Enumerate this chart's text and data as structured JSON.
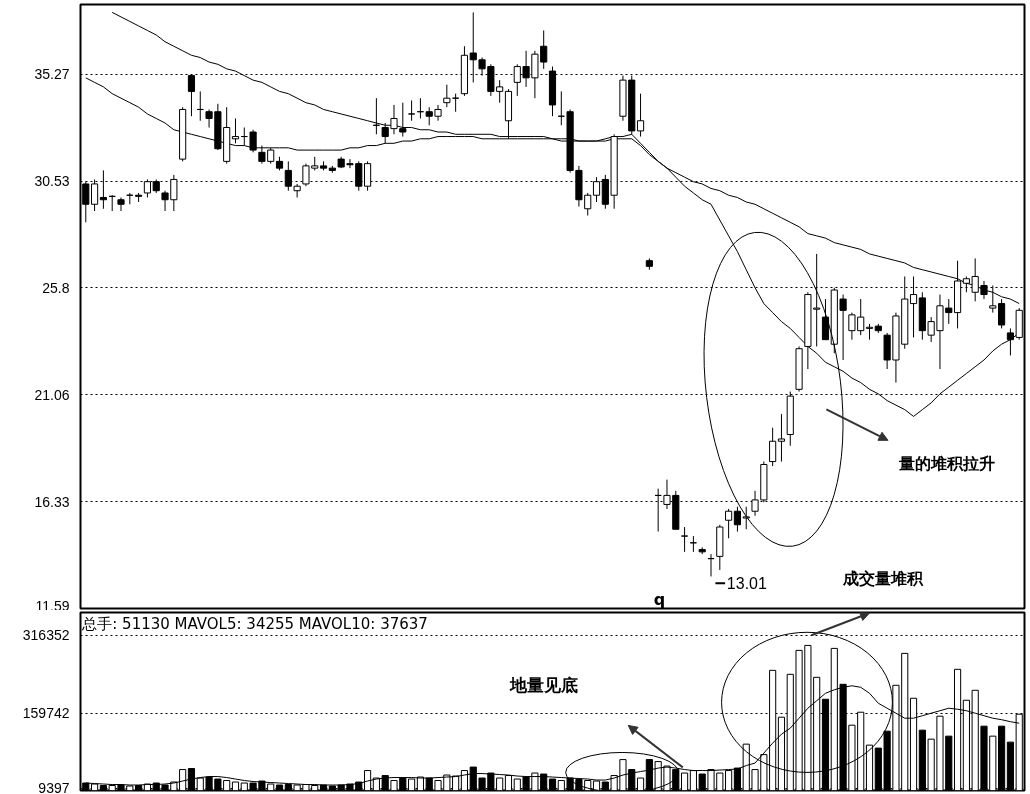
{
  "chart_data": [
    {
      "type": "candlestick",
      "categories": [
        null,
        null,
        null,
        null,
        null,
        null,
        null,
        null,
        null,
        null,
        null,
        null,
        null,
        null,
        null,
        null,
        null,
        null,
        null,
        null,
        null,
        null,
        null,
        null,
        null,
        null,
        null,
        null,
        null,
        null,
        null,
        null,
        null,
        null,
        null,
        null,
        null,
        null,
        null,
        null,
        null,
        null,
        null,
        null,
        null,
        null,
        null,
        null,
        null,
        null,
        null,
        null,
        null,
        null,
        null,
        null,
        null,
        null,
        null,
        null,
        null,
        null,
        null,
        null,
        null,
        null,
        null,
        null,
        null,
        null,
        null,
        null,
        null,
        null,
        null,
        null,
        null,
        null,
        null,
        null,
        null,
        null,
        null,
        null,
        null,
        null,
        null,
        null,
        null,
        null,
        null,
        null,
        null,
        null,
        null,
        null,
        null,
        null,
        null,
        null,
        null,
        null,
        null,
        null,
        null,
        null,
        null
      ],
      "ohlc": [
        [
          30.4,
          30.5,
          28.7,
          29.5
        ],
        [
          29.5,
          30.6,
          29.2,
          30.4
        ],
        [
          29.8,
          31.0,
          29.3,
          29.7
        ],
        [
          29.85,
          29.9,
          29.2,
          29.85
        ],
        [
          29.7,
          29.8,
          29.2,
          29.5
        ],
        [
          29.9,
          30.0,
          29.5,
          29.9
        ],
        [
          29.9,
          30.0,
          29.6,
          29.85
        ],
        [
          30.0,
          30.6,
          29.8,
          30.5
        ],
        [
          30.5,
          30.6,
          30.0,
          30.1
        ],
        [
          30.0,
          30.1,
          29.2,
          29.7
        ],
        [
          29.7,
          30.8,
          29.2,
          30.6
        ],
        [
          31.5,
          33.8,
          31.4,
          33.7
        ],
        [
          35.2,
          35.2,
          33.4,
          34.5
        ],
        [
          33.7,
          34.5,
          33.2,
          33.7
        ],
        [
          33.6,
          33.7,
          32.9,
          33.3
        ],
        [
          33.6,
          33.95,
          31.9,
          31.96
        ],
        [
          31.4,
          33.8,
          31.3,
          32.9
        ],
        [
          32.4,
          33.3,
          32.2,
          32.5
        ],
        [
          32.5,
          32.9,
          32.1,
          32.5
        ],
        [
          32.7,
          32.8,
          31.8,
          31.9
        ],
        [
          31.8,
          32.1,
          31.3,
          31.4
        ],
        [
          31.4,
          32.0,
          31.3,
          31.9
        ],
        [
          31.4,
          31.6,
          31.0,
          31.1
        ],
        [
          31.0,
          31.4,
          30.1,
          30.3
        ],
        [
          30.1,
          30.4,
          29.8,
          30.3
        ],
        [
          30.4,
          31.3,
          30.3,
          31.2
        ],
        [
          31.1,
          31.6,
          31.0,
          31.2
        ],
        [
          31.2,
          31.4,
          31.0,
          31.1
        ],
        [
          31.1,
          31.2,
          30.9,
          31.0
        ],
        [
          31.5,
          31.6,
          31.1,
          31.15
        ],
        [
          31.3,
          31.5,
          31.1,
          31.25
        ],
        [
          31.3,
          31.4,
          30.1,
          30.3
        ],
        [
          30.3,
          31.4,
          30.1,
          31.3
        ],
        [
          33.0,
          34.2,
          32.6,
          33.0
        ],
        [
          32.9,
          33.1,
          32.2,
          32.5
        ],
        [
          32.85,
          33.9,
          32.6,
          33.3
        ],
        [
          32.85,
          34.0,
          32.5,
          32.7
        ],
        [
          33.5,
          34.1,
          33.2,
          33.5
        ],
        [
          33.6,
          34.2,
          33.3,
          33.6
        ],
        [
          33.6,
          33.8,
          33.0,
          33.4
        ],
        [
          33.4,
          33.9,
          33.2,
          33.7
        ],
        [
          34.0,
          34.8,
          33.8,
          34.2
        ],
        [
          34.2,
          34.4,
          33.6,
          34.2
        ],
        [
          34.4,
          36.5,
          34.3,
          36.1
        ],
        [
          36.2,
          38.0,
          34.9,
          35.9
        ],
        [
          35.9,
          36.0,
          35.2,
          35.5
        ],
        [
          35.6,
          35.7,
          34.3,
          34.5
        ],
        [
          34.5,
          35.0,
          34.0,
          34.7
        ],
        [
          33.2,
          34.6,
          32.4,
          34.5
        ],
        [
          34.9,
          35.7,
          34.3,
          35.6
        ],
        [
          35.6,
          36.3,
          34.7,
          35.1
        ],
        [
          35.1,
          36.3,
          34.2,
          36.15
        ],
        [
          36.5,
          37.2,
          35.5,
          35.8
        ],
        [
          35.4,
          35.6,
          33.4,
          33.9
        ],
        [
          33.4,
          34.5,
          33.0,
          33.4
        ],
        [
          33.6,
          33.7,
          30.9,
          31.0
        ],
        [
          31.0,
          31.2,
          29.4,
          29.7
        ],
        [
          29.3,
          30.0,
          29.0,
          29.9
        ],
        [
          29.9,
          30.7,
          29.6,
          30.5
        ],
        [
          30.6,
          30.8,
          29.3,
          29.5
        ],
        [
          29.9,
          32.6,
          29.3,
          32.5
        ],
        [
          33.4,
          35.2,
          33.2,
          35.0
        ],
        [
          35.0,
          35.2,
          32.6,
          32.75
        ],
        [
          32.75,
          34.4,
          32.5,
          33.2
        ],
        [
          27.0,
          27.1,
          26.6,
          26.75
        ],
        [
          16.6,
          16.9,
          15.0,
          16.6
        ],
        [
          16.2,
          17.3,
          16.0,
          16.6
        ],
        [
          16.6,
          16.8,
          15.1,
          15.1
        ],
        [
          14.8,
          15.2,
          14.1,
          14.8
        ],
        [
          14.5,
          14.8,
          14.1,
          14.5
        ],
        [
          14.2,
          14.3,
          14.0,
          14.1
        ],
        [
          13.8,
          14.0,
          13.01,
          13.8
        ],
        [
          13.9,
          15.3,
          13.3,
          15.2
        ],
        [
          15.5,
          16.0,
          14.7,
          15.9
        ],
        [
          15.9,
          16.1,
          15.0,
          15.3
        ],
        [
          15.6,
          16.1,
          15.1,
          15.65
        ],
        [
          15.9,
          16.8,
          15.7,
          16.4
        ],
        [
          16.4,
          18.1,
          16.3,
          17.97
        ],
        [
          18.1,
          19.6,
          17.9,
          19.0
        ],
        [
          19.0,
          20.2,
          18.1,
          19.1
        ],
        [
          19.3,
          21.2,
          18.8,
          21.0
        ],
        [
          21.3,
          23.2,
          21.2,
          23.1
        ],
        [
          23.2,
          25.6,
          22.2,
          25.5
        ],
        [
          24.85,
          27.3,
          23.2,
          24.9
        ],
        [
          24.5,
          25.3,
          23.5,
          23.5
        ],
        [
          23.3,
          25.8,
          22.9,
          25.7
        ],
        [
          25.3,
          25.5,
          22.6,
          24.8
        ],
        [
          23.9,
          24.7,
          23.5,
          24.6
        ],
        [
          23.9,
          25.3,
          23.7,
          24.5
        ],
        [
          24.0,
          24.2,
          23.5,
          24.05
        ],
        [
          24.1,
          24.2,
          23.8,
          23.9
        ],
        [
          23.7,
          23.8,
          22.2,
          22.6
        ],
        [
          22.6,
          24.7,
          21.6,
          24.55
        ],
        [
          23.3,
          26.3,
          23.1,
          25.3
        ],
        [
          25.1,
          26.3,
          23.6,
          25.5
        ],
        [
          25.35,
          25.6,
          23.5,
          23.9
        ],
        [
          23.7,
          24.5,
          23.4,
          24.3
        ],
        [
          23.9,
          25.5,
          22.2,
          25.0
        ],
        [
          24.9,
          25.3,
          24.2,
          24.7
        ],
        [
          24.7,
          27.0,
          24.0,
          26.1
        ],
        [
          26.0,
          26.3,
          25.6,
          26.2
        ],
        [
          25.6,
          27.1,
          25.2,
          26.3
        ],
        [
          25.9,
          26.1,
          25.3,
          25.5
        ],
        [
          24.9,
          25.9,
          24.7,
          25.0
        ],
        [
          25.1,
          25.3,
          24.0,
          24.15
        ],
        [
          23.8,
          24.0,
          22.8,
          23.5
        ],
        [
          23.6,
          24.9,
          23.5,
          24.8
        ]
      ],
      "series": [
        {
          "type": "line",
          "color": "#000000",
          "values": [
            null,
            null,
            null,
            38.0,
            37.8,
            37.6,
            37.4,
            37.2,
            37.0,
            36.7,
            36.5,
            36.3,
            36.1,
            36.0,
            35.8,
            35.7,
            35.5,
            35.4,
            35.2,
            35.0,
            34.9,
            34.7,
            34.5,
            34.4,
            34.2,
            34.0,
            33.9,
            33.7,
            33.6,
            33.5,
            33.4,
            33.3,
            33.2,
            33.1,
            33.0,
            33.0,
            32.9,
            32.9,
            32.8,
            32.8,
            32.7,
            32.7,
            32.6,
            32.6,
            32.6,
            32.6,
            32.6,
            32.5,
            32.5,
            32.5,
            32.5,
            32.5,
            32.5,
            32.4,
            32.4,
            32.4,
            32.3,
            32.3,
            32.3,
            32.3,
            32.4,
            32.4,
            32.4,
            32.1,
            31.7,
            31.4,
            31.1,
            30.9,
            30.7,
            30.5,
            30.4,
            30.2,
            30.1,
            29.9,
            29.8,
            29.6,
            29.5,
            29.3,
            29.1,
            28.9,
            28.7,
            28.5,
            28.2,
            28.1,
            28.0,
            27.8,
            27.7,
            27.6,
            27.5,
            27.3,
            27.2,
            27.1,
            27.0,
            26.9,
            26.7,
            26.6,
            26.5,
            26.4,
            26.3,
            26.2,
            26.0,
            25.9,
            25.7,
            25.6,
            25.4,
            25.3,
            25.1
          ]
        },
        {
          "type": "line",
          "color": "#000000",
          "values": [
            35.1,
            34.9,
            34.7,
            34.4,
            34.2,
            34.0,
            33.8,
            33.5,
            33.3,
            33.1,
            32.8,
            32.7,
            32.6,
            32.5,
            32.4,
            32.3,
            32.2,
            32.1,
            32.1,
            32.0,
            32.0,
            32.0,
            32.0,
            32.0,
            31.9,
            31.9,
            31.9,
            31.9,
            31.9,
            31.9,
            32.0,
            32.0,
            32.1,
            32.1,
            32.2,
            32.2,
            32.3,
            32.3,
            32.4,
            32.4,
            32.5,
            32.5,
            32.5,
            32.5,
            32.5,
            32.4,
            32.4,
            32.4,
            32.4,
            32.4,
            32.4,
            32.4,
            32.4,
            32.4,
            32.3,
            32.3,
            32.3,
            32.3,
            32.3,
            32.4,
            32.5,
            32.5,
            32.6,
            32.2,
            31.8,
            31.4,
            31.1,
            30.7,
            30.3,
            30.0,
            29.7,
            29.5,
            28.8,
            28.1,
            27.4,
            26.6,
            25.8,
            25.1,
            24.7,
            24.3,
            24.0,
            23.6,
            23.2,
            22.9,
            22.5,
            22.3,
            22.1,
            21.8,
            21.6,
            21.3,
            21.1,
            20.8,
            20.6,
            20.4,
            20.1,
            20.4,
            20.7,
            21.1,
            21.4,
            21.7,
            22.0,
            22.3,
            22.6,
            23.0,
            23.3,
            23.5,
            23.8
          ]
        }
      ],
      "ylim": [
        11.59,
        38.35
      ],
      "yticks": [
        11.59,
        16.33,
        21.06,
        25.8,
        30.53,
        35.27
      ],
      "grid": "y",
      "tick_labels": "y",
      "annotations": [
        "13.01",
        "量的堆积拉升",
        "成交量堆积",
        "q"
      ]
    },
    {
      "type": "bar",
      "categories": [
        null,
        null,
        null,
        null,
        null,
        null,
        null,
        null,
        null,
        null,
        null,
        null,
        null,
        null,
        null,
        null,
        null,
        null,
        null,
        null,
        null,
        null,
        null,
        null,
        null,
        null,
        null,
        null,
        null,
        null,
        null,
        null,
        null,
        null,
        null,
        null,
        null,
        null,
        null,
        null,
        null,
        null,
        null,
        null,
        null,
        null,
        null,
        null,
        null,
        null,
        null,
        null,
        null,
        null,
        null,
        null,
        null,
        null,
        null,
        null,
        null,
        null,
        null,
        null,
        null,
        null,
        null,
        null,
        null,
        null,
        null,
        null,
        null,
        null,
        null,
        null,
        null,
        null,
        null,
        null,
        null,
        null,
        null,
        null,
        null,
        null,
        null,
        null,
        null,
        null,
        null,
        null,
        null,
        null,
        null,
        null,
        null,
        null,
        null,
        null,
        null,
        null,
        null,
        null,
        null,
        null,
        null
      ],
      "series": [
        {
          "type": "bar",
          "values": [
            20000,
            18000,
            15000,
            15000,
            16000,
            14000,
            15000,
            18000,
            20000,
            16000,
            22000,
            47000,
            49000,
            30000,
            32000,
            28000,
            25000,
            22000,
            20000,
            20000,
            24000,
            18000,
            16000,
            17000,
            16000,
            17000,
            15000,
            16000,
            14000,
            16000,
            18000,
            22000,
            45000,
            30000,
            35000,
            25000,
            30000,
            28000,
            32000,
            30000,
            25000,
            36000,
            34000,
            45000,
            52000,
            30000,
            40000,
            30000,
            35000,
            28000,
            32000,
            40000,
            38000,
            28000,
            25000,
            30000,
            27000,
            25000,
            24000,
            22000,
            35000,
            67000,
            47000,
            30000,
            67000,
            63000,
            54000,
            47000,
            40000,
            45000,
            38000,
            47000,
            40000,
            45000,
            50000,
            98000,
            47000,
            77000,
            246000,
            152000,
            238000,
            286000,
            296000,
            232000,
            188000,
            290000,
            218000,
            136000,
            162000,
            96000,
            90000,
            124000,
            216000,
            280000,
            190000,
            126000,
            108000,
            154000,
            114000,
            248000,
            186000,
            206000,
            134000,
            114000,
            134000,
            102000,
            158000
          ],
          "colors": [
            "#000000",
            "#ffffff",
            "#000000",
            "#ffffff",
            "#000000",
            "#ffffff",
            "#000000",
            "#ffffff",
            "#000000",
            "#000000",
            "#ffffff",
            "#ffffff",
            "#000000",
            "#ffffff",
            "#000000",
            "#000000",
            "#ffffff",
            "#ffffff",
            "#ffffff",
            "#000000",
            "#000000",
            "#ffffff",
            "#000000",
            "#000000",
            "#ffffff",
            "#ffffff",
            "#ffffff",
            "#000000",
            "#000000",
            "#000000",
            "#000000",
            "#000000",
            "#ffffff",
            "#ffffff",
            "#000000",
            "#ffffff",
            "#000000",
            "#ffffff",
            "#ffffff",
            "#000000",
            "#ffffff",
            "#ffffff",
            "#ffffff",
            "#ffffff",
            "#000000",
            "#000000",
            "#000000",
            "#ffffff",
            "#ffffff",
            "#ffffff",
            "#000000",
            "#ffffff",
            "#000000",
            "#000000",
            "#ffffff",
            "#000000",
            "#000000",
            "#ffffff",
            "#ffffff",
            "#000000",
            "#ffffff",
            "#ffffff",
            "#000000",
            "#ffffff",
            "#000000",
            "#ffffff",
            "#ffffff",
            "#000000",
            "#ffffff",
            "#ffffff",
            "#000000",
            "#ffffff",
            "#ffffff",
            "#ffffff",
            "#000000",
            "#ffffff",
            "#ffffff",
            "#ffffff",
            "#ffffff",
            "#ffffff",
            "#ffffff",
            "#ffffff",
            "#ffffff",
            "#ffffff",
            "#000000",
            "#ffffff",
            "#000000",
            "#ffffff",
            "#ffffff",
            "#ffffff",
            "#000000",
            "#000000",
            "#ffffff",
            "#ffffff",
            "#ffffff",
            "#000000",
            "#ffffff",
            "#ffffff",
            "#000000",
            "#ffffff",
            "#ffffff",
            "#ffffff",
            "#000000",
            "#ffffff",
            "#000000",
            "#000000",
            "#ffffff"
          ]
        },
        {
          "type": "line",
          "color": "#000000",
          "values": [
            20000,
            19000,
            18000,
            17000,
            17000,
            16000,
            16000,
            17000,
            17000,
            18000,
            20000,
            24000,
            28000,
            31000,
            33000,
            33000,
            31000,
            28000,
            25000,
            23000,
            22000,
            21000,
            20000,
            19000,
            18000,
            17000,
            17000,
            16000,
            16000,
            16000,
            17000,
            19000,
            24000,
            28000,
            30000,
            31000,
            31000,
            31000,
            30000,
            30000,
            31000,
            32000,
            33000,
            36000,
            39000,
            39000,
            38000,
            37000,
            36000,
            34000,
            33000,
            33000,
            33000,
            32000,
            31000,
            30000,
            29000,
            28000,
            26000,
            26000,
            30000,
            36000,
            40000,
            43000,
            46000,
            50000,
            52000,
            50000,
            47000,
            45000,
            45000,
            45000,
            46000,
            47000,
            48000,
            55000,
            60000,
            80000,
            100000,
            118000,
            130000,
            150000,
            170000,
            185000,
            200000,
            207000,
            212000,
            215000,
            212000,
            200000,
            180000,
            170000,
            160000,
            150000,
            150000,
            155000,
            160000,
            165000,
            170000,
            168000,
            165000,
            160000,
            155000,
            150000,
            147000,
            143000,
            140000
          ]
        }
      ],
      "ylim": [
        5000,
        362000
      ],
      "yticks": [
        9397,
        159742,
        316352
      ],
      "grid": "y",
      "tick_labels": "y",
      "annotations": [
        "总手: 51130 MAVOL5: 34255 MAVOL10: 37637",
        "地量见底"
      ]
    }
  ]
}
